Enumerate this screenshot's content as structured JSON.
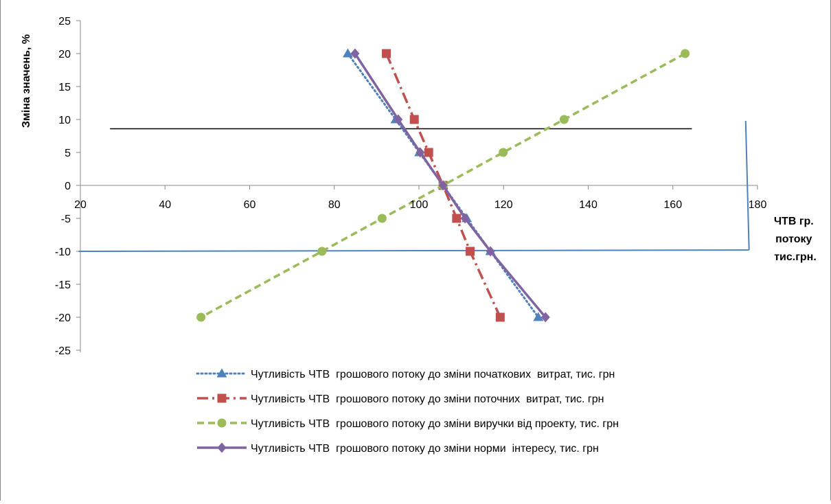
{
  "chart_data": {
    "type": "line",
    "title": "",
    "xlabel": "ЧТВ гр. потоку тис.грн.",
    "xlabel_lines": [
      "ЧТВ гр.",
      "потоку",
      "тис.грн."
    ],
    "ylabel": "Зміна значень, %",
    "xlim": [
      20,
      180
    ],
    "ylim": [
      -25,
      25
    ],
    "x_ticks": [
      20,
      40,
      60,
      80,
      100,
      120,
      140,
      160,
      180
    ],
    "y_ticks": [
      25,
      20,
      15,
      10,
      5,
      0,
      -5,
      -10,
      -15,
      -20,
      -25
    ],
    "grid": false,
    "legend_position": "bottom",
    "series": [
      {
        "name": "Чутливість ЧТВ  грошового потоку до зміни початкових  витрат, тис. грн",
        "color": "#4f81bd",
        "dash": "dotted",
        "marker": "triangle",
        "x": [
          83.2,
          94.5,
          100.1,
          105.7,
          111.3,
          116.9,
          128.2
        ],
        "y": [
          20,
          10,
          5,
          0,
          -5,
          -10,
          -20
        ]
      },
      {
        "name": "Чутливість ЧТВ  грошового потоку до зміни поточних  витрат, тис. грн",
        "color": "#c0504d",
        "dash": "dashdot",
        "marker": "square",
        "x": [
          92.3,
          98.9,
          102.3,
          105.7,
          108.9,
          112.1,
          119.2
        ],
        "y": [
          20,
          10,
          5,
          0,
          -5,
          -10,
          -20
        ]
      },
      {
        "name": "Чутливість ЧТВ  грошового потоку до зміни виручки від проекту, тис. грн",
        "color": "#9bbb59",
        "dash": "dashed",
        "marker": "circle",
        "x": [
          162.9,
          134.3,
          119.9,
          105.7,
          91.3,
          77.1,
          48.5
        ],
        "y": [
          20,
          10,
          5,
          0,
          -5,
          -10,
          -20
        ]
      },
      {
        "name": "Чутливість ЧТВ  грошового потоку до зміни норми  інтересу, тис. грн",
        "color": "#8064a2",
        "dash": "solid",
        "marker": "diamond",
        "x": [
          84.9,
          95.1,
          100.3,
          105.7,
          110.9,
          116.9,
          129.9
        ],
        "y": [
          20,
          10,
          5,
          0,
          -5,
          -10,
          -20
        ]
      }
    ],
    "annotations": [
      {
        "kind": "line",
        "color": "#000000",
        "x": [
          27,
          164.5
        ],
        "y": [
          8.6,
          8.6
        ]
      },
      {
        "kind": "line",
        "color": "#4f81bd",
        "x": [
          19.6,
          178
        ],
        "y": [
          -10,
          -9.8
        ]
      },
      {
        "kind": "line",
        "color": "#4f81bd",
        "x": [
          177.2,
          178
        ],
        "y": [
          9.8,
          -9.8
        ]
      }
    ]
  }
}
